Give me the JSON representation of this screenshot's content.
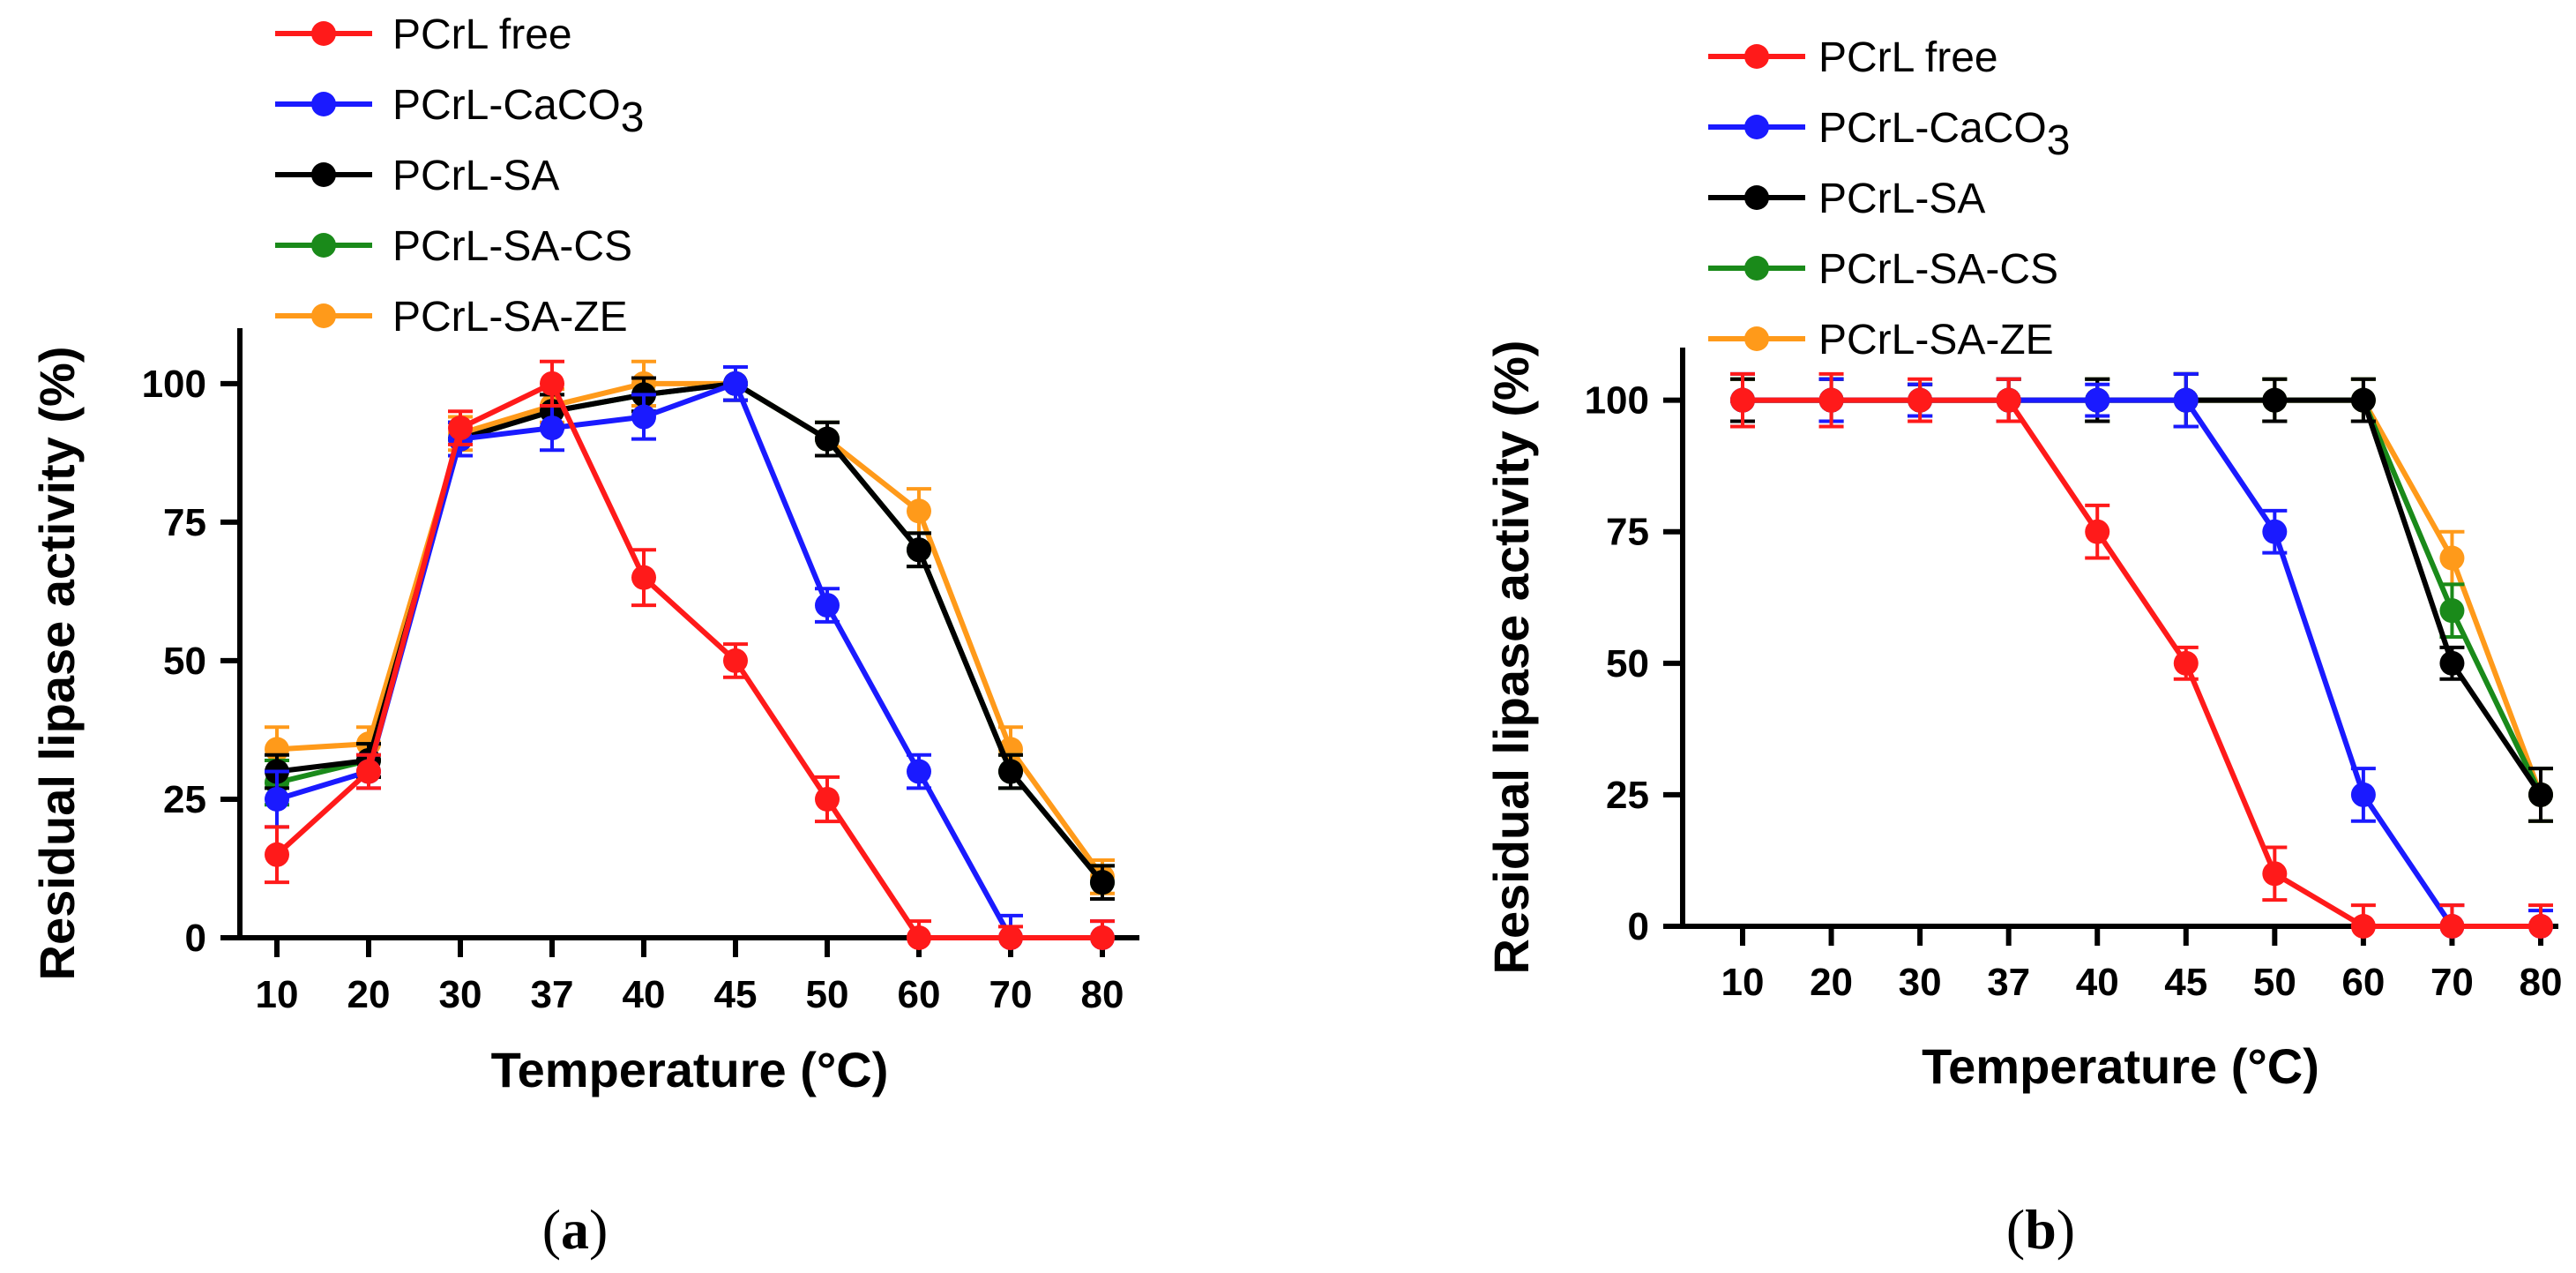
{
  "colors": {
    "PCrL free": "#ff1a1a",
    "PCrL-CaCO3": "#1a1aff",
    "PCrL-SA": "#000000",
    "PCrL-SA-CS": "#1a8a1a",
    "PCrL-SA-ZE": "#ff9a1a"
  },
  "chart_data": [
    {
      "type": "line",
      "panel_label": "a",
      "xlabel": "Temperature (°C)",
      "ylabel": "Residual lipase activity (%)",
      "categories": [
        "10",
        "20",
        "30",
        "37",
        "40",
        "45",
        "50",
        "60",
        "70",
        "80"
      ],
      "ylim": [
        0,
        110
      ],
      "yticks": [
        0,
        25,
        50,
        75,
        100
      ],
      "legend_position": "top-left",
      "series": [
        {
          "name": "PCrL-SA-ZE",
          "legend_main": "PCrL-SA-ZE",
          "legend_sub": "",
          "values": [
            34,
            35,
            91,
            96,
            100,
            100,
            90,
            77,
            34,
            11
          ],
          "errors": [
            4,
            3,
            3,
            3,
            4,
            3,
            3,
            4,
            4,
            3
          ]
        },
        {
          "name": "PCrL-SA-CS",
          "legend_main": "PCrL-SA-CS",
          "legend_sub": "",
          "values": [
            28,
            32,
            90,
            95,
            98,
            100,
            90,
            70,
            30,
            10
          ],
          "errors": [
            4,
            3,
            3,
            3,
            3,
            3,
            3,
            3,
            3,
            3
          ]
        },
        {
          "name": "PCrL-SA",
          "legend_main": "PCrL-SA",
          "legend_sub": "",
          "values": [
            30,
            32,
            90,
            95,
            98,
            100,
            90,
            70,
            30,
            10
          ],
          "errors": [
            3,
            3,
            3,
            3,
            3,
            3,
            3,
            3,
            3,
            3
          ]
        },
        {
          "name": "PCrL-CaCO3",
          "legend_main": "PCrL-CaCO",
          "legend_sub": "3",
          "values": [
            25,
            30,
            90,
            92,
            94,
            100,
            60,
            30,
            0,
            0
          ],
          "errors": [
            5,
            3,
            3,
            4,
            4,
            3,
            3,
            3,
            4,
            3
          ]
        },
        {
          "name": "PCrL free",
          "legend_main": "PCrL free",
          "legend_sub": "",
          "values": [
            15,
            30,
            92,
            100,
            65,
            50,
            25,
            0,
            0,
            0
          ],
          "errors": [
            5,
            3,
            3,
            4,
            5,
            3,
            4,
            3,
            2,
            3
          ]
        }
      ]
    },
    {
      "type": "line",
      "panel_label": "b",
      "xlabel": "Temperature (°C)",
      "ylabel": "Residual lipase activity (%)",
      "categories": [
        "10",
        "20",
        "30",
        "37",
        "40",
        "45",
        "50",
        "60",
        "70",
        "80"
      ],
      "ylim": [
        0,
        110
      ],
      "yticks": [
        0,
        25,
        50,
        75,
        100
      ],
      "legend_position": "top-left",
      "series": [
        {
          "name": "PCrL-SA-ZE",
          "legend_main": "PCrL-SA-ZE",
          "legend_sub": "",
          "values": [
            100,
            100,
            100,
            100,
            100,
            100,
            100,
            100,
            70,
            25
          ],
          "errors": [
            4,
            4,
            3,
            4,
            4,
            5,
            4,
            4,
            5,
            5
          ]
        },
        {
          "name": "PCrL-SA-CS",
          "legend_main": "PCrL-SA-CS",
          "legend_sub": "",
          "values": [
            100,
            100,
            100,
            100,
            100,
            100,
            100,
            100,
            60,
            25
          ],
          "errors": [
            4,
            4,
            3,
            4,
            4,
            5,
            4,
            4,
            5,
            5
          ]
        },
        {
          "name": "PCrL-SA",
          "legend_main": "PCrL-SA",
          "legend_sub": "",
          "values": [
            100,
            100,
            100,
            100,
            100,
            100,
            100,
            100,
            50,
            25
          ],
          "errors": [
            4,
            4,
            3,
            4,
            4,
            5,
            4,
            4,
            3,
            5
          ]
        },
        {
          "name": "PCrL-CaCO3",
          "legend_main": "PCrL-CaCO",
          "legend_sub": "3",
          "values": [
            100,
            100,
            100,
            100,
            100,
            100,
            75,
            25,
            0,
            0
          ],
          "errors": [
            5,
            4,
            3,
            4,
            3,
            5,
            4,
            5,
            4,
            3
          ]
        },
        {
          "name": "PCrL free",
          "legend_main": "PCrL free",
          "legend_sub": "",
          "values": [
            100,
            100,
            100,
            100,
            75,
            50,
            10,
            0,
            0,
            0
          ],
          "errors": [
            5,
            5,
            4,
            4,
            5,
            3,
            5,
            4,
            4,
            4
          ]
        }
      ]
    }
  ]
}
